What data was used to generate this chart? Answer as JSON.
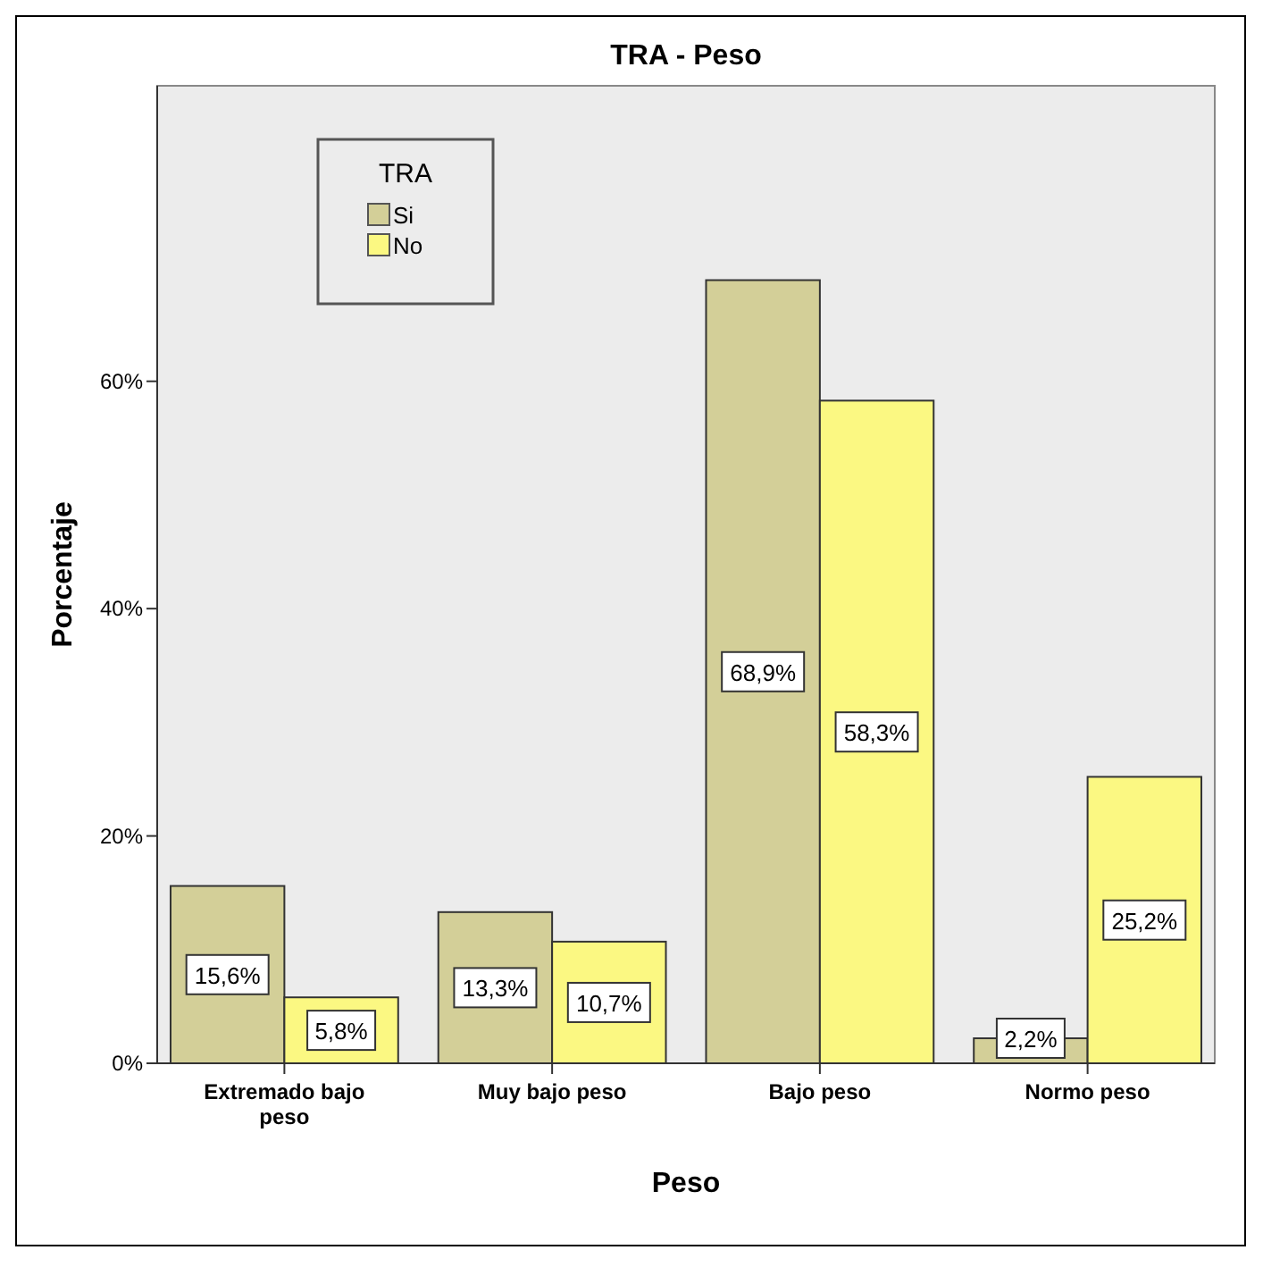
{
  "chart_data": {
    "type": "bar",
    "title": "TRA - Peso",
    "xlabel": "Peso",
    "ylabel": "Porcentaje",
    "legend_title": "TRA",
    "categories": [
      "Extremado bajo peso",
      "Muy bajo peso",
      "Bajo peso",
      "Normo peso"
    ],
    "series": [
      {
        "name": "Si",
        "color": "#d3cf98",
        "values": [
          15.6,
          13.3,
          68.9,
          2.2
        ],
        "value_labels": [
          "15,6%",
          "13,3%",
          "68,9%",
          "2,2%"
        ]
      },
      {
        "name": "No",
        "color": "#fbf882",
        "values": [
          5.8,
          10.7,
          58.3,
          25.2
        ],
        "value_labels": [
          "5,8%",
          "10,7%",
          "58,3%",
          "25,2%"
        ]
      }
    ],
    "ylim": [
      0,
      86
    ],
    "yticks": [
      {
        "value": 0,
        "label": "0%"
      },
      {
        "value": 20,
        "label": "20%"
      },
      {
        "value": 40,
        "label": "40%"
      },
      {
        "value": 60,
        "label": "60%"
      }
    ],
    "legend": "top left"
  }
}
